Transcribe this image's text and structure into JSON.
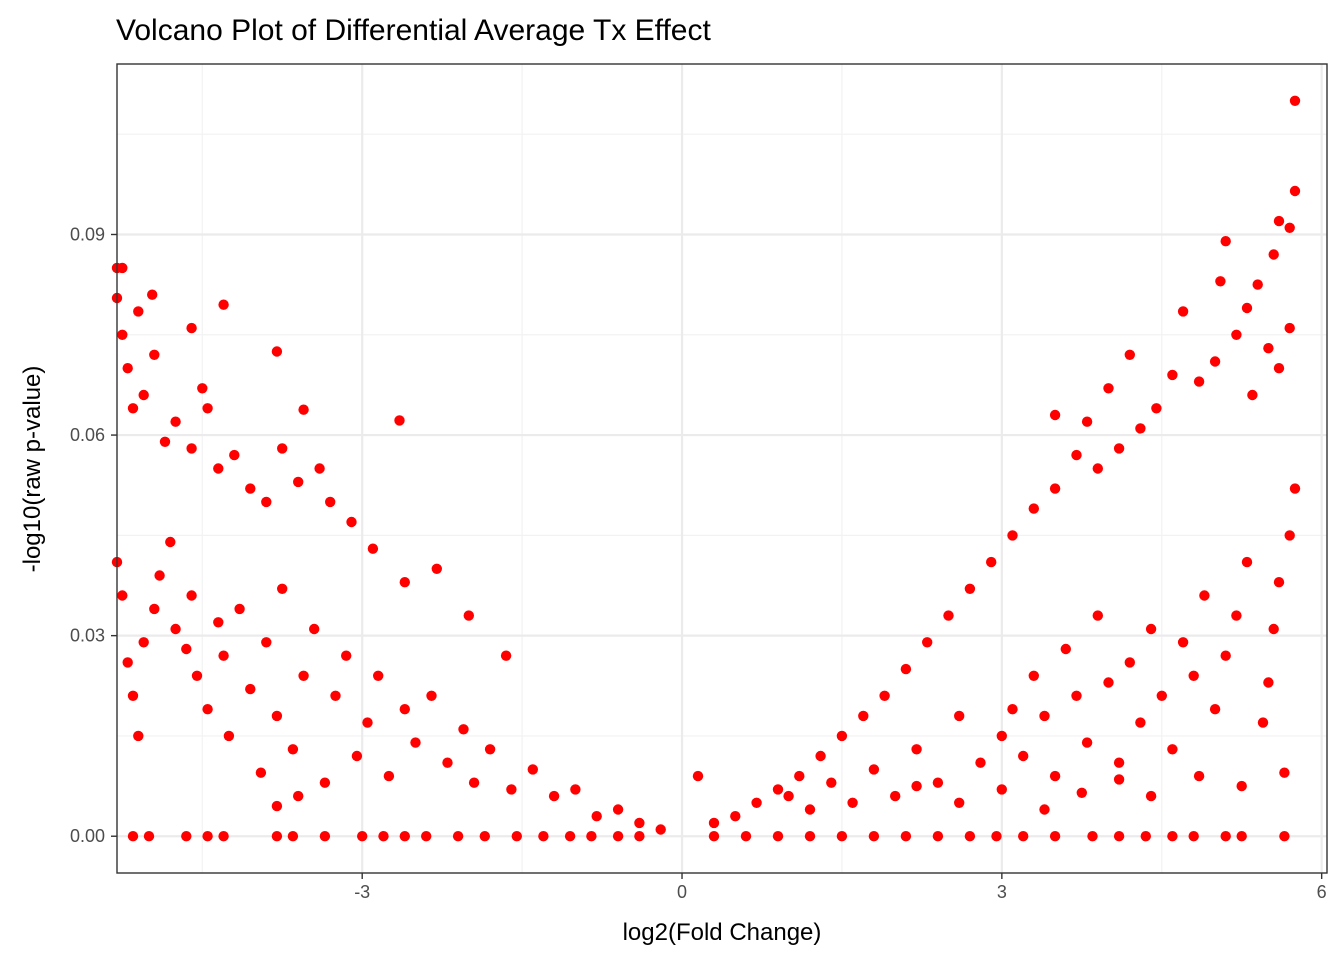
{
  "chart_data": {
    "type": "scatter",
    "title": "Volcano Plot of Differential Average Tx Effect",
    "xlabel": "log2(Fold Change)",
    "ylabel": "-log10(raw p-value)",
    "xlim": [
      -5.3,
      6.05
    ],
    "ylim": [
      -0.0055,
      0.1155
    ],
    "xticks": [
      -3,
      0,
      3,
      6
    ],
    "xtick_labels": [
      "-3",
      "0",
      "3",
      "6"
    ],
    "yticks": [
      0,
      0.03,
      0.06,
      0.09
    ],
    "ytick_labels": [
      "0.00",
      "0.03",
      "0.06",
      "0.09"
    ],
    "grid": true,
    "theme": "bw",
    "point_color": "#FF0000",
    "series": [
      {
        "points": [
          [
            -5.3,
            0.085
          ],
          [
            -5.25,
            0.085
          ],
          [
            -5.3,
            0.0805
          ],
          [
            -5.1,
            0.0785
          ],
          [
            -4.97,
            0.081
          ],
          [
            -4.6,
            0.076
          ],
          [
            -4.3,
            0.0795
          ],
          [
            -3.8,
            0.0725
          ],
          [
            -3.55,
            0.0638
          ],
          [
            -2.65,
            0.0622
          ],
          [
            -5.25,
            0.075
          ],
          [
            -5.2,
            0.07
          ],
          [
            -5.15,
            0.064
          ],
          [
            -5.05,
            0.066
          ],
          [
            -4.95,
            0.072
          ],
          [
            -4.85,
            0.059
          ],
          [
            -4.75,
            0.062
          ],
          [
            -4.6,
            0.058
          ],
          [
            -4.5,
            0.067
          ],
          [
            -4.45,
            0.064
          ],
          [
            -4.35,
            0.055
          ],
          [
            -4.2,
            0.057
          ],
          [
            -4.05,
            0.052
          ],
          [
            -3.9,
            0.05
          ],
          [
            -3.75,
            0.058
          ],
          [
            -3.6,
            0.053
          ],
          [
            -3.4,
            0.055
          ],
          [
            -3.3,
            0.05
          ],
          [
            -3.1,
            0.047
          ],
          [
            -2.9,
            0.043
          ],
          [
            -2.6,
            0.038
          ],
          [
            -2.3,
            0.04
          ],
          [
            -2.0,
            0.033
          ],
          [
            -1.65,
            0.027
          ],
          [
            -5.3,
            0.041
          ],
          [
            -5.25,
            0.036
          ],
          [
            -5.2,
            0.026
          ],
          [
            -5.15,
            0.021
          ],
          [
            -5.1,
            0.015
          ],
          [
            -5.05,
            0.029
          ],
          [
            -4.95,
            0.034
          ],
          [
            -4.9,
            0.039
          ],
          [
            -4.8,
            0.044
          ],
          [
            -4.75,
            0.031
          ],
          [
            -4.65,
            0.028
          ],
          [
            -4.6,
            0.036
          ],
          [
            -4.55,
            0.024
          ],
          [
            -4.45,
            0.019
          ],
          [
            -4.35,
            0.032
          ],
          [
            -4.3,
            0.027
          ],
          [
            -4.25,
            0.015
          ],
          [
            -4.15,
            0.034
          ],
          [
            -4.05,
            0.022
          ],
          [
            -3.95,
            0.0095
          ],
          [
            -3.9,
            0.029
          ],
          [
            -3.8,
            0.018
          ],
          [
            -3.75,
            0.037
          ],
          [
            -3.65,
            0.013
          ],
          [
            -3.55,
            0.024
          ],
          [
            -3.45,
            0.031
          ],
          [
            -3.35,
            0.008
          ],
          [
            -3.25,
            0.021
          ],
          [
            -3.15,
            0.027
          ],
          [
            -3.05,
            0.012
          ],
          [
            -2.95,
            0.017
          ],
          [
            -2.85,
            0.024
          ],
          [
            -2.75,
            0.009
          ],
          [
            -2.6,
            0.019
          ],
          [
            -2.5,
            0.014
          ],
          [
            -2.35,
            0.021
          ],
          [
            -2.2,
            0.011
          ],
          [
            -2.05,
            0.016
          ],
          [
            -1.95,
            0.008
          ],
          [
            -1.8,
            0.013
          ],
          [
            -1.6,
            0.007
          ],
          [
            -1.4,
            0.01
          ],
          [
            -1.2,
            0.006
          ],
          [
            -1.0,
            0.007
          ],
          [
            -0.8,
            0.003
          ],
          [
            -0.6,
            0.004
          ],
          [
            -0.4,
            0.002
          ],
          [
            -0.2,
            0.001
          ],
          [
            -3.8,
            0.0045
          ],
          [
            -3.6,
            0.006
          ],
          [
            -5.15,
            0.0
          ],
          [
            -5.0,
            0.0
          ],
          [
            -4.65,
            0.0
          ],
          [
            -4.45,
            0.0
          ],
          [
            -4.3,
            0.0
          ],
          [
            -3.8,
            0.0
          ],
          [
            -3.65,
            0.0
          ],
          [
            -3.35,
            0.0
          ],
          [
            -3.0,
            0.0
          ],
          [
            -2.8,
            0.0
          ],
          [
            -2.6,
            0.0
          ],
          [
            -2.4,
            0.0
          ],
          [
            -2.1,
            0.0
          ],
          [
            -1.85,
            0.0
          ],
          [
            -1.55,
            0.0
          ],
          [
            -1.3,
            0.0
          ],
          [
            -1.05,
            0.0
          ],
          [
            -0.85,
            0.0
          ],
          [
            -0.6,
            0.0
          ],
          [
            -0.4,
            0.0
          ],
          [
            0.15,
            0.009
          ],
          [
            5.75,
            0.11
          ],
          [
            5.75,
            0.0965
          ],
          [
            5.7,
            0.091
          ],
          [
            5.6,
            0.092
          ],
          [
            5.55,
            0.087
          ],
          [
            5.4,
            0.0825
          ],
          [
            5.3,
            0.079
          ],
          [
            5.1,
            0.089
          ],
          [
            5.05,
            0.083
          ],
          [
            4.7,
            0.0785
          ],
          [
            4.2,
            0.072
          ],
          [
            4.0,
            0.067
          ],
          [
            3.8,
            0.062
          ],
          [
            3.5,
            0.063
          ],
          [
            5.7,
            0.076
          ],
          [
            5.6,
            0.07
          ],
          [
            5.5,
            0.073
          ],
          [
            5.35,
            0.066
          ],
          [
            5.2,
            0.075
          ],
          [
            5.0,
            0.071
          ],
          [
            4.85,
            0.068
          ],
          [
            4.6,
            0.069
          ],
          [
            4.45,
            0.064
          ],
          [
            4.3,
            0.061
          ],
          [
            4.1,
            0.058
          ],
          [
            3.9,
            0.055
          ],
          [
            3.7,
            0.057
          ],
          [
            3.5,
            0.052
          ],
          [
            3.3,
            0.049
          ],
          [
            3.1,
            0.045
          ],
          [
            2.9,
            0.041
          ],
          [
            2.7,
            0.037
          ],
          [
            2.5,
            0.033
          ],
          [
            2.3,
            0.029
          ],
          [
            2.1,
            0.025
          ],
          [
            1.9,
            0.021
          ],
          [
            1.7,
            0.018
          ],
          [
            1.5,
            0.015
          ],
          [
            1.3,
            0.012
          ],
          [
            1.1,
            0.009
          ],
          [
            0.9,
            0.007
          ],
          [
            0.7,
            0.005
          ],
          [
            0.5,
            0.003
          ],
          [
            0.3,
            0.002
          ],
          [
            5.75,
            0.052
          ],
          [
            5.7,
            0.045
          ],
          [
            5.6,
            0.038
          ],
          [
            5.55,
            0.031
          ],
          [
            5.5,
            0.023
          ],
          [
            5.45,
            0.017
          ],
          [
            5.3,
            0.041
          ],
          [
            5.2,
            0.033
          ],
          [
            5.1,
            0.027
          ],
          [
            5.0,
            0.019
          ],
          [
            4.9,
            0.036
          ],
          [
            4.8,
            0.024
          ],
          [
            4.7,
            0.029
          ],
          [
            4.6,
            0.013
          ],
          [
            4.5,
            0.021
          ],
          [
            4.4,
            0.031
          ],
          [
            4.3,
            0.017
          ],
          [
            4.2,
            0.026
          ],
          [
            4.1,
            0.011
          ],
          [
            4.0,
            0.023
          ],
          [
            3.9,
            0.033
          ],
          [
            3.8,
            0.014
          ],
          [
            3.7,
            0.021
          ],
          [
            3.6,
            0.028
          ],
          [
            3.5,
            0.009
          ],
          [
            3.4,
            0.018
          ],
          [
            3.3,
            0.024
          ],
          [
            3.2,
            0.012
          ],
          [
            3.1,
            0.019
          ],
          [
            3.0,
            0.015
          ],
          [
            2.8,
            0.011
          ],
          [
            2.6,
            0.018
          ],
          [
            2.4,
            0.008
          ],
          [
            2.2,
            0.013
          ],
          [
            2.0,
            0.006
          ],
          [
            1.8,
            0.01
          ],
          [
            1.6,
            0.005
          ],
          [
            1.4,
            0.008
          ],
          [
            1.2,
            0.004
          ],
          [
            1.0,
            0.006
          ],
          [
            5.65,
            0.0095
          ],
          [
            5.25,
            0.0075
          ],
          [
            4.85,
            0.009
          ],
          [
            4.4,
            0.006
          ],
          [
            4.1,
            0.0085
          ],
          [
            3.75,
            0.0065
          ],
          [
            3.4,
            0.004
          ],
          [
            3.0,
            0.007
          ],
          [
            2.6,
            0.005
          ],
          [
            2.2,
            0.0075
          ],
          [
            5.65,
            0.0
          ],
          [
            5.25,
            0.0
          ],
          [
            5.1,
            0.0
          ],
          [
            4.8,
            0.0
          ],
          [
            4.6,
            0.0
          ],
          [
            4.35,
            0.0
          ],
          [
            4.1,
            0.0
          ],
          [
            3.85,
            0.0
          ],
          [
            3.5,
            0.0
          ],
          [
            3.2,
            0.0
          ],
          [
            2.95,
            0.0
          ],
          [
            2.7,
            0.0
          ],
          [
            2.4,
            0.0
          ],
          [
            2.1,
            0.0
          ],
          [
            1.8,
            0.0
          ],
          [
            1.5,
            0.0
          ],
          [
            1.2,
            0.0
          ],
          [
            0.9,
            0.0
          ],
          [
            0.6,
            0.0
          ],
          [
            0.3,
            0.0
          ]
        ]
      }
    ]
  }
}
